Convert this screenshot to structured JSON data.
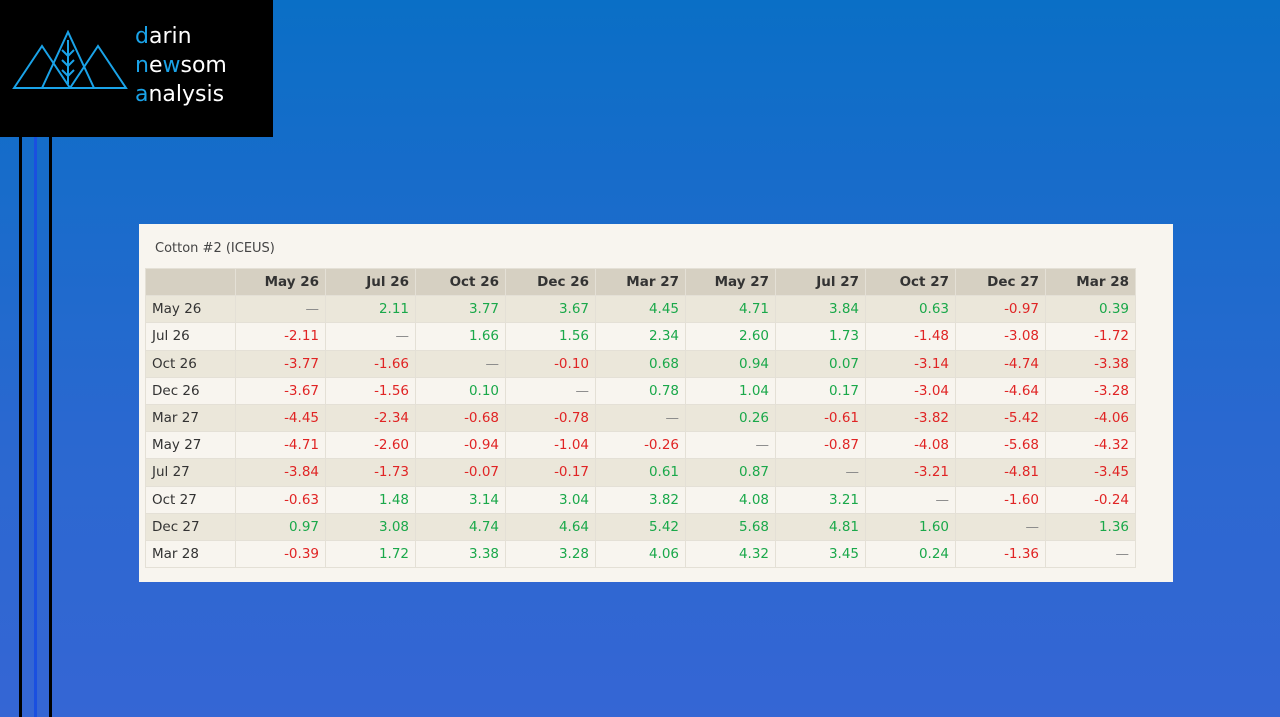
{
  "logo": {
    "lines": [
      [
        "d",
        "arin"
      ],
      [
        "n",
        "e",
        "w",
        "som"
      ],
      [
        "a",
        "nalysis"
      ]
    ]
  },
  "table": {
    "title": "Cotton #2 (ICEUS)",
    "columns": [
      "",
      "May 26",
      "Jul 26",
      "Oct 26",
      "Dec 26",
      "Mar 27",
      "May 27",
      "Jul 27",
      "Oct 27",
      "Dec 27",
      "Mar 28"
    ],
    "rows": [
      [
        "May 26",
        "—",
        "2.11",
        "3.77",
        "3.67",
        "4.45",
        "4.71",
        "3.84",
        "0.63",
        "-0.97",
        "0.39"
      ],
      [
        "Jul 26",
        "-2.11",
        "—",
        "1.66",
        "1.56",
        "2.34",
        "2.60",
        "1.73",
        "-1.48",
        "-3.08",
        "-1.72"
      ],
      [
        "Oct 26",
        "-3.77",
        "-1.66",
        "—",
        "-0.10",
        "0.68",
        "0.94",
        "0.07",
        "-3.14",
        "-4.74",
        "-3.38"
      ],
      [
        "Dec 26",
        "-3.67",
        "-1.56",
        "0.10",
        "—",
        "0.78",
        "1.04",
        "0.17",
        "-3.04",
        "-4.64",
        "-3.28"
      ],
      [
        "Mar 27",
        "-4.45",
        "-2.34",
        "-0.68",
        "-0.78",
        "—",
        "0.26",
        "-0.61",
        "-3.82",
        "-5.42",
        "-4.06"
      ],
      [
        "May 27",
        "-4.71",
        "-2.60",
        "-0.94",
        "-1.04",
        "-0.26",
        "—",
        "-0.87",
        "-4.08",
        "-5.68",
        "-4.32"
      ],
      [
        "Jul 27",
        "-3.84",
        "-1.73",
        "-0.07",
        "-0.17",
        "0.61",
        "0.87",
        "—",
        "-3.21",
        "-4.81",
        "-3.45"
      ],
      [
        "Oct 27",
        "-0.63",
        "1.48",
        "3.14",
        "3.04",
        "3.82",
        "4.08",
        "3.21",
        "—",
        "-1.60",
        "-0.24"
      ],
      [
        "Dec 27",
        "0.97",
        "3.08",
        "4.74",
        "4.64",
        "5.42",
        "5.68",
        "4.81",
        "1.60",
        "—",
        "1.36"
      ],
      [
        "Mar 28",
        "-0.39",
        "1.72",
        "3.38",
        "3.28",
        "4.06",
        "4.32",
        "3.45",
        "0.24",
        "-1.36",
        "—"
      ]
    ]
  }
}
